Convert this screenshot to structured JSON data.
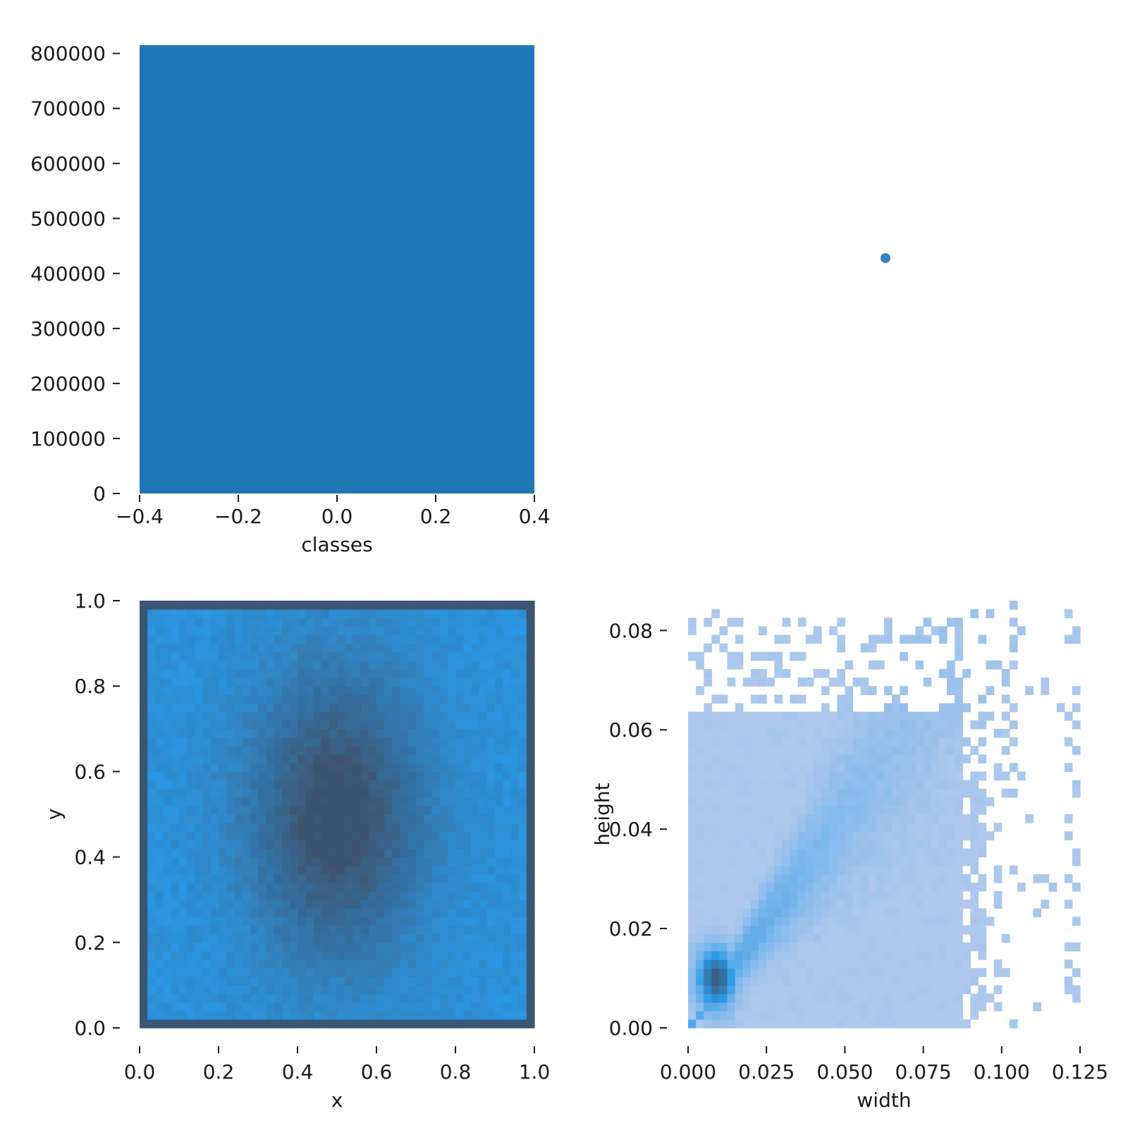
{
  "chart_data": [
    {
      "type": "bar",
      "categories": [
        0
      ],
      "values": [
        815000
      ],
      "xlabel": "classes",
      "ylabel": "",
      "xlim": [
        -0.4,
        0.4
      ],
      "ylim": [
        0,
        815000
      ],
      "xticks": [
        -0.4,
        -0.2,
        0.0,
        0.2,
        0.4
      ],
      "xtick_labels": [
        "−0.4",
        "−0.2",
        "0.0",
        "0.2",
        "0.4"
      ],
      "yticks": [
        0,
        100000,
        200000,
        300000,
        400000,
        500000,
        600000,
        700000,
        800000
      ],
      "ytick_labels": [
        "0",
        "100000",
        "200000",
        "300000",
        "400000",
        "500000",
        "600000",
        "700000",
        "800000"
      ],
      "color": "#2077b4",
      "grid": false
    },
    {
      "type": "scatter",
      "points": [
        {
          "x": 0,
          "y": 0
        }
      ],
      "xlabel": "",
      "ylabel": "",
      "color": "#2077b4",
      "grid": false,
      "axes_visible": false
    },
    {
      "type": "heatmap",
      "xlabel": "x",
      "ylabel": "y",
      "xlim": [
        0,
        1
      ],
      "ylim": [
        0,
        1
      ],
      "xticks": [
        0,
        0.2,
        0.4,
        0.6,
        0.8,
        1.0
      ],
      "xtick_labels": [
        "0.0",
        "0.2",
        "0.4",
        "0.6",
        "0.8",
        "1.0"
      ],
      "yticks": [
        0,
        0.2,
        0.4,
        0.6,
        0.8,
        1.0
      ],
      "ytick_labels": [
        "0.0",
        "0.2",
        "0.4",
        "0.6",
        "0.8",
        "1.0"
      ],
      "bins": 50,
      "density_description": "dense center around (0.5, 0.5); lighter toward edges; dark border bins at 0 and 1",
      "colors": {
        "low": "#2a9ae8",
        "high": "#3d5470",
        "edge": "#3a5676"
      }
    },
    {
      "type": "heatmap",
      "xlabel": "width",
      "ylabel": "height",
      "xlim": [
        0,
        0.125
      ],
      "ylim": [
        0,
        0.086
      ],
      "xticks": [
        0.0,
        0.025,
        0.05,
        0.075,
        0.1,
        0.125
      ],
      "xtick_labels": [
        "0.000",
        "0.025",
        "0.050",
        "0.075",
        "0.100",
        "0.125"
      ],
      "yticks": [
        0.0,
        0.02,
        0.04,
        0.06,
        0.08
      ],
      "ytick_labels": [
        "0.00",
        "0.02",
        "0.04",
        "0.06",
        "0.08"
      ],
      "bins": 50,
      "peak": {
        "width": 0.009,
        "height": 0.01
      },
      "diagonal_ridge": [
        [
          0.005,
          0.006
        ],
        [
          0.015,
          0.015
        ],
        [
          0.03,
          0.025
        ],
        [
          0.045,
          0.035
        ]
      ],
      "colors": {
        "low": "#adc8ec",
        "mid": "#2a9ae8",
        "high": "#3d5470"
      }
    }
  ]
}
